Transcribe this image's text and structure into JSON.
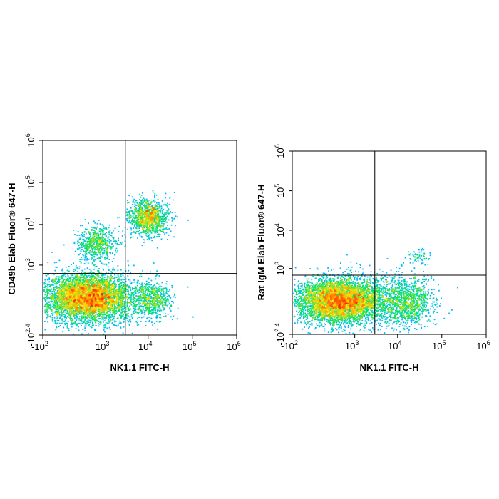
{
  "chart_data": [
    {
      "type": "scatter",
      "subtype": "flow-cytometry-density-dot-plot",
      "title": "",
      "xlabel": "NK1.1 FITC-H",
      "ylabel": "CD49b Elab Fluor® 647-H",
      "x_scale": "biexponential",
      "y_scale": "biexponential",
      "xlim": [
        -100,
        1000000
      ],
      "ylim": [
        -251,
        1000000
      ],
      "x_ticks": [
        {
          "base": "-10",
          "exp": "2",
          "value": -100
        },
        {
          "base": "10",
          "exp": "3",
          "value": 1000
        },
        {
          "base": "10",
          "exp": "4",
          "value": 10000
        },
        {
          "base": "10",
          "exp": "5",
          "value": 100000
        },
        {
          "base": "10",
          "exp": "6",
          "value": 1000000
        }
      ],
      "y_ticks": [
        {
          "base": "-10",
          "exp": "2.4",
          "value": -251
        },
        {
          "base": "10",
          "exp": "3",
          "value": 1000
        },
        {
          "base": "10",
          "exp": "4",
          "value": 10000
        },
        {
          "base": "10",
          "exp": "5",
          "value": 100000
        },
        {
          "base": "10",
          "exp": "6",
          "value": 1000000
        }
      ],
      "quadrant_gate": {
        "x": 3000,
        "y": 600
      },
      "populations": [
        {
          "center": [
            350,
            100
          ],
          "spread": "high",
          "density": "very-high"
        },
        {
          "center": [
            10000,
            15000
          ],
          "spread": "medium",
          "density": "medium"
        },
        {
          "center": [
            600,
            3500
          ],
          "spread": "medium",
          "density": "low"
        },
        {
          "center": [
            12000,
            80
          ],
          "spread": "medium",
          "density": "low"
        }
      ],
      "grid": false,
      "colormap": [
        "#1a1aff",
        "#00c8ff",
        "#00e060",
        "#ffe000",
        "#ff2000"
      ]
    },
    {
      "type": "scatter",
      "subtype": "flow-cytometry-density-dot-plot",
      "title": "",
      "xlabel": "NK1.1 FITC-H",
      "ylabel": "Rat IgM Elab Fluor® 647-H",
      "x_scale": "biexponential",
      "y_scale": "biexponential",
      "xlim": [
        -100,
        1000000
      ],
      "ylim": [
        -251,
        1000000
      ],
      "x_ticks": [
        {
          "base": "-10",
          "exp": "2",
          "value": -100
        },
        {
          "base": "10",
          "exp": "3",
          "value": 1000
        },
        {
          "base": "10",
          "exp": "4",
          "value": 10000
        },
        {
          "base": "10",
          "exp": "5",
          "value": 100000
        },
        {
          "base": "10",
          "exp": "6",
          "value": 1000000
        }
      ],
      "y_ticks": [
        {
          "base": "-10",
          "exp": "2.4",
          "value": -251
        },
        {
          "base": "10",
          "exp": "3",
          "value": 1000
        },
        {
          "base": "10",
          "exp": "4",
          "value": 10000
        },
        {
          "base": "10",
          "exp": "5",
          "value": 100000
        },
        {
          "base": "10",
          "exp": "6",
          "value": 1000000
        }
      ],
      "quadrant_gate": {
        "x": 3000,
        "y": 650
      },
      "populations": [
        {
          "center": [
            400,
            80
          ],
          "spread": "high",
          "density": "very-high"
        },
        {
          "center": [
            15000,
            80
          ],
          "spread": "high",
          "density": "medium"
        },
        {
          "center": [
            30000,
            2000
          ],
          "spread": "low",
          "density": "very-low"
        }
      ],
      "grid": false,
      "colormap": [
        "#1a1aff",
        "#00c8ff",
        "#00e060",
        "#ffe000",
        "#ff2000"
      ]
    }
  ]
}
